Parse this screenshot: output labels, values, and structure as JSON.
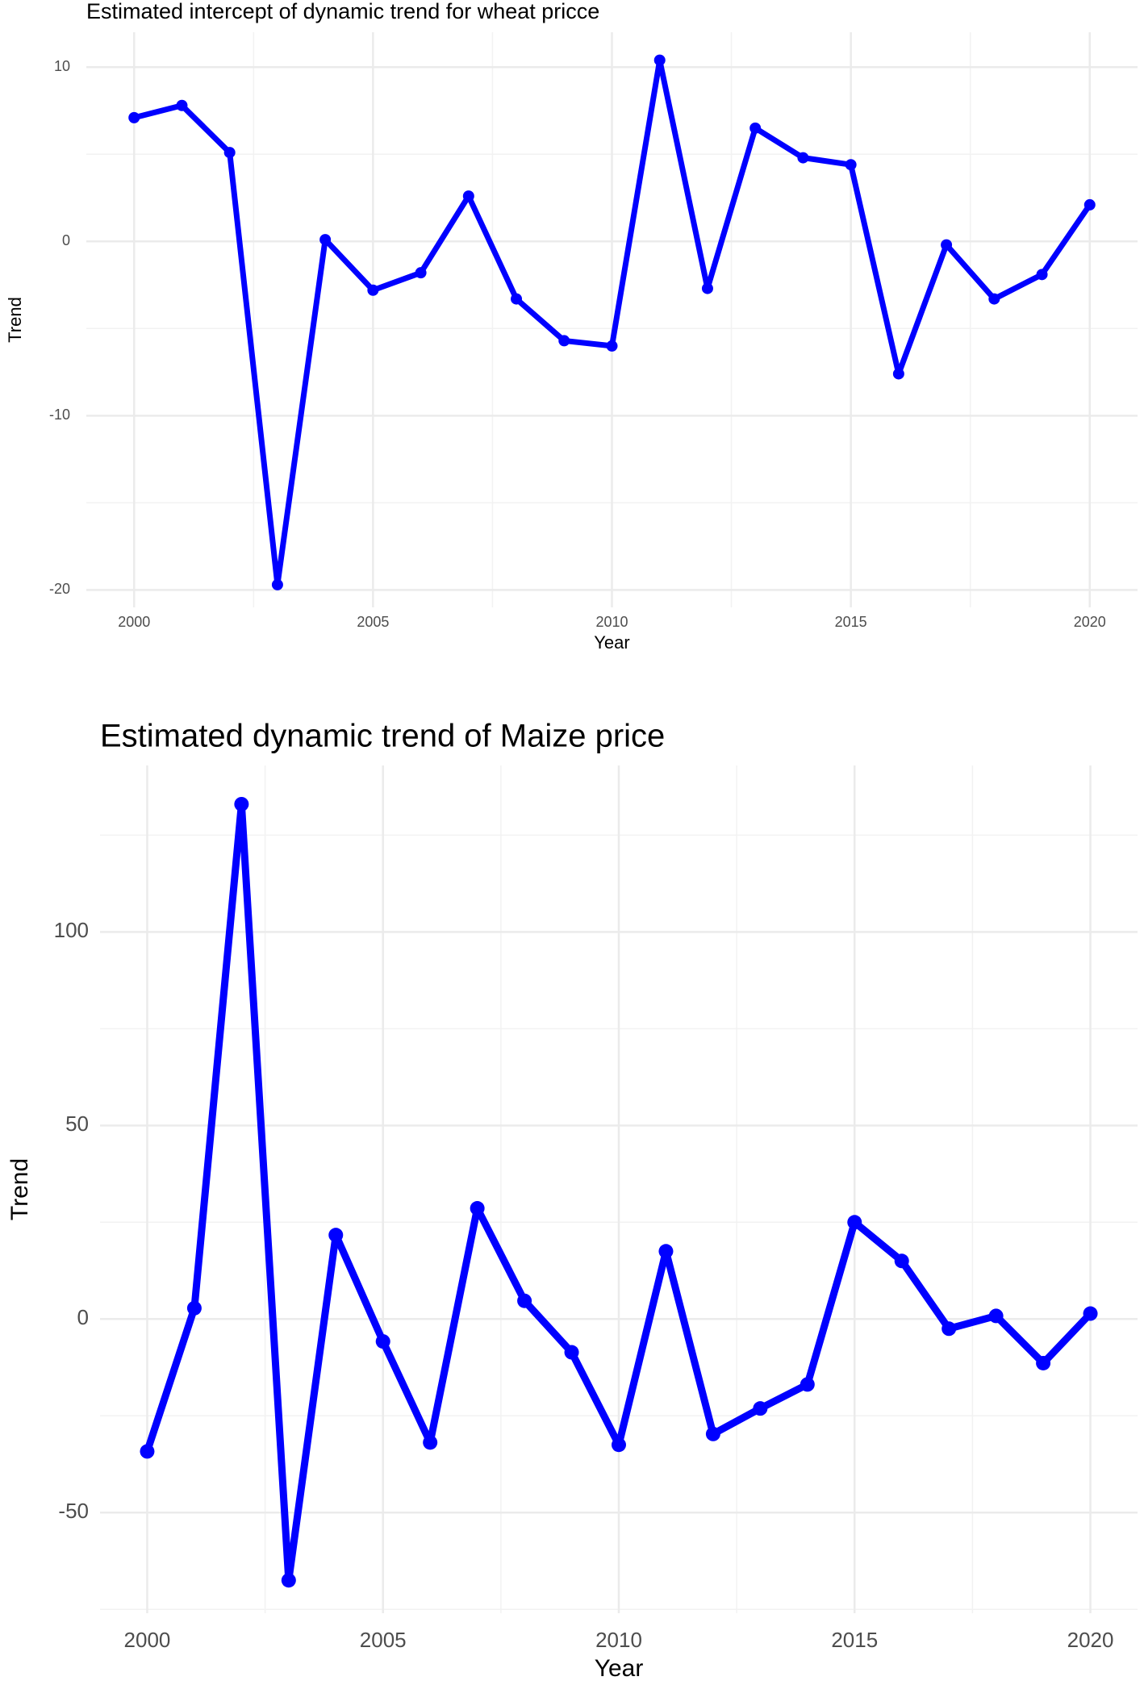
{
  "chart_data": [
    {
      "type": "line",
      "title": "Estimated intercept of dynamic trend for wheat pricce",
      "x_label": "Year",
      "y_label": "Trend",
      "x": [
        2000,
        2001,
        2002,
        2003,
        2004,
        2005,
        2006,
        2007,
        2008,
        2009,
        2010,
        2011,
        2012,
        2013,
        2014,
        2015,
        2016,
        2017,
        2018,
        2019,
        2020
      ],
      "values": [
        7.1,
        7.8,
        5.1,
        -19.7,
        0.1,
        -2.8,
        -1.8,
        2.6,
        -3.3,
        -5.7,
        -6.0,
        10.4,
        -2.7,
        6.5,
        4.8,
        4.4,
        -7.6,
        -0.2,
        -3.3,
        -1.9,
        2.1
      ],
      "color": "#0000ff",
      "xlim": [
        1999,
        2021
      ],
      "xticks": [
        2000,
        2005,
        2010,
        2015,
        2020
      ],
      "ylim": [
        -21,
        12
      ],
      "yticks": [
        -20,
        -10,
        0,
        10
      ],
      "grid": true
    },
    {
      "type": "line",
      "title": "Estimated dynamic trend of Maize price",
      "x_label": "Year",
      "y_label": "Trend",
      "x": [
        2000,
        2001,
        2002,
        2003,
        2004,
        2005,
        2006,
        2007,
        2008,
        2009,
        2010,
        2011,
        2012,
        2013,
        2014,
        2015,
        2016,
        2017,
        2018,
        2019,
        2020
      ],
      "values": [
        -34.2,
        2.8,
        133,
        -67.5,
        21.7,
        -5.8,
        -31.9,
        28.6,
        4.7,
        -8.6,
        -32.5,
        17.5,
        -29.7,
        -23.1,
        -16.9,
        25,
        15,
        -2.5,
        0.8,
        -11.4,
        1.4
      ],
      "color": "#0000ff",
      "xlim": [
        1999,
        2021
      ],
      "xticks": [
        2000,
        2005,
        2010,
        2015,
        2020
      ],
      "ylim": [
        -76,
        143
      ],
      "yticks": [
        -50,
        0,
        50,
        100
      ],
      "grid": true
    }
  ]
}
